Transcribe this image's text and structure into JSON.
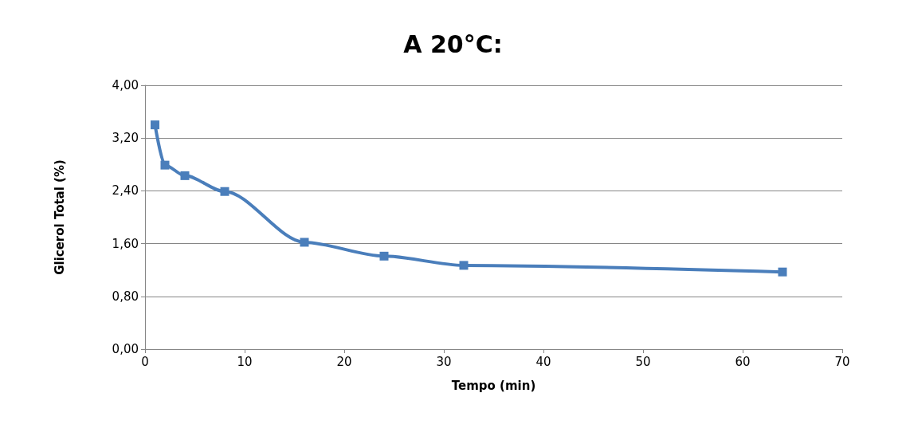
{
  "chart_data": {
    "type": "line",
    "title": "A 20°C:",
    "xlabel": "Tempo (min)",
    "ylabel": "Glicerol Total (%)",
    "x": [
      1,
      2,
      4,
      8,
      16,
      24,
      32,
      64
    ],
    "series": [
      {
        "color": "#4a7ebb",
        "values": [
          3.4,
          2.79,
          2.63,
          2.39,
          1.62,
          1.41,
          1.27,
          1.17
        ]
      }
    ],
    "xlim": [
      0,
      70
    ],
    "xticks": [
      0,
      10,
      20,
      30,
      40,
      50,
      60,
      70
    ],
    "ylim": [
      0,
      4
    ],
    "yticks": [
      {
        "value": 0,
        "label": "0,00"
      },
      {
        "value": 0.8,
        "label": "0,80"
      },
      {
        "value": 1.6,
        "label": "1,60"
      },
      {
        "value": 2.4,
        "label": "2,40"
      },
      {
        "value": 3.2,
        "label": "3,20"
      },
      {
        "value": 4,
        "label": "4,00"
      }
    ],
    "grid": "y",
    "marker": "square",
    "line_style": "solid"
  }
}
